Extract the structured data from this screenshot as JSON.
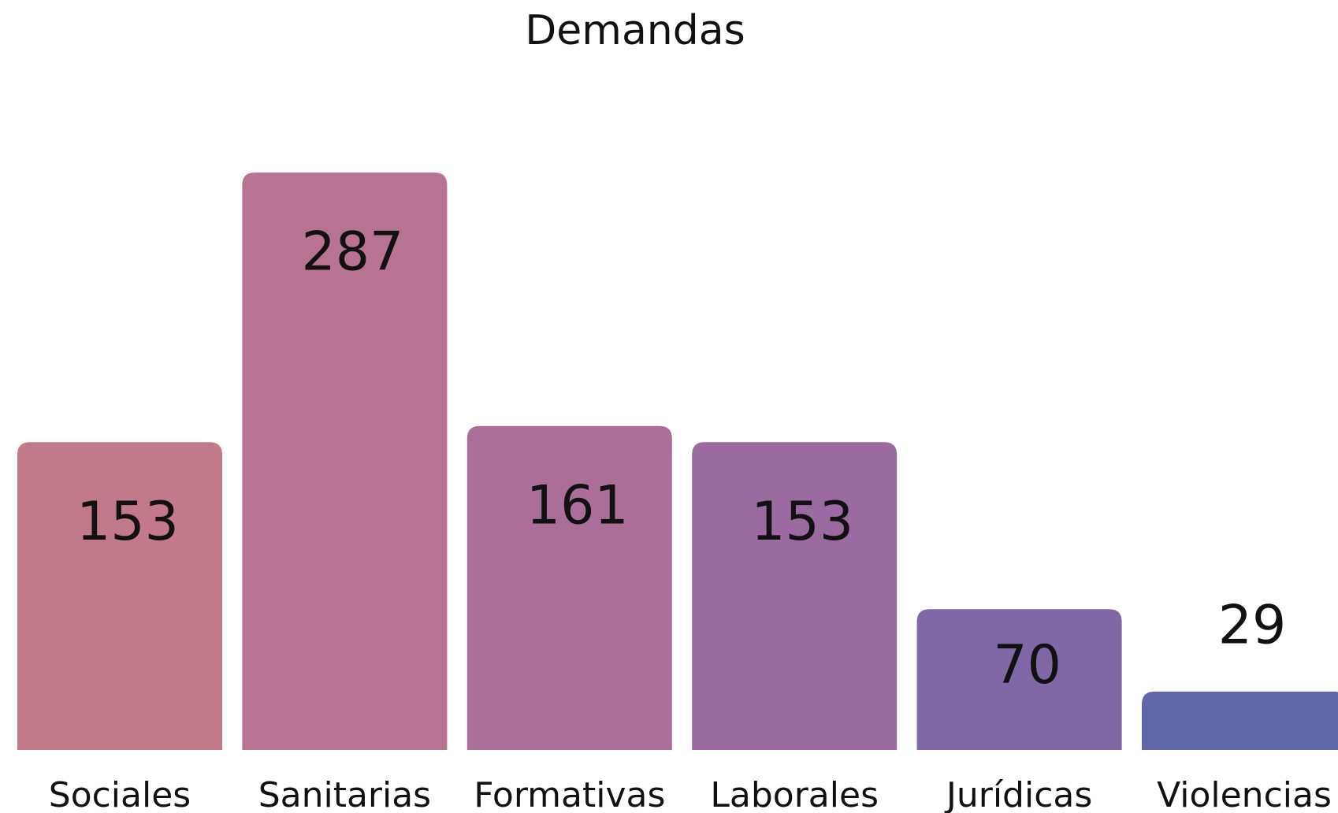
{
  "chart_data": {
    "type": "bar",
    "title": "Demandas",
    "categories": [
      "Sociales",
      "Sanitarias",
      "Formativas",
      "Laborales",
      "Jurídicas",
      "Violencias"
    ],
    "values": [
      153,
      287,
      161,
      153,
      70,
      29
    ],
    "colors": [
      "#c27a8a",
      "#b87292",
      "#aa6e98",
      "#9a6aa0",
      "#8068a6",
      "#6066a8"
    ]
  }
}
